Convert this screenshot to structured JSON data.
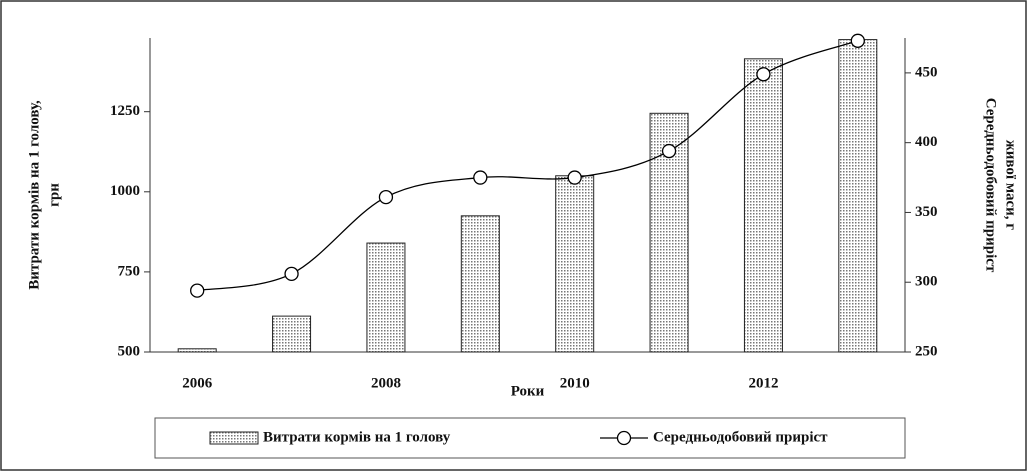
{
  "chart_data": {
    "type": "combo",
    "categories": [
      "2006",
      null,
      "2008",
      null,
      "2010",
      null,
      "2012",
      null
    ],
    "x_label": "Роки",
    "y_label": [
      "Витрати кормів на 1 голову,",
      "грн"
    ],
    "y2_label": [
      "Середньодобовий приріст",
      "живої маси, г"
    ],
    "ylim": [
      500,
      1480
    ],
    "yticks": [
      500,
      750,
      1000,
      1250
    ],
    "y2lim": [
      250,
      475
    ],
    "y2ticks": [
      250,
      300,
      350,
      400,
      450
    ],
    "series": [
      {
        "name": "Витрати кормів на 1 голову",
        "type": "bar",
        "color": "#bdbdbd",
        "values": [
          510,
          612,
          840,
          925,
          1050,
          1245,
          1415,
          1475
        ]
      },
      {
        "name": "Середньодобовий приріст",
        "type": "line",
        "color": "#000000",
        "axis": "y2",
        "values": [
          294,
          306,
          361,
          375,
          375,
          394,
          449,
          473
        ]
      }
    ],
    "legend": "bottom"
  }
}
